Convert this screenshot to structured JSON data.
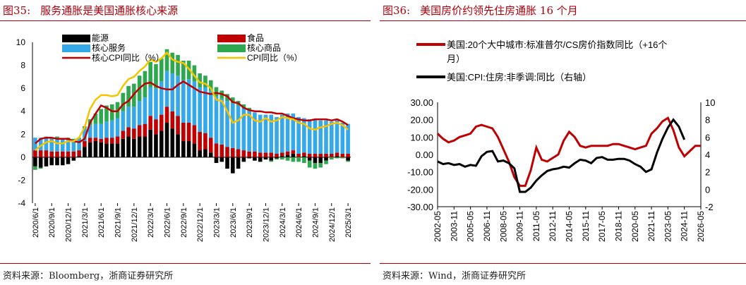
{
  "left_panel": {
    "figure_label": "图35:",
    "title": "服务通胀是美国通胀核心来源",
    "source": "资料来源：Bloomberg，浙商证券研究所"
  },
  "right_panel": {
    "figure_label": "图36:",
    "title": "美国房价约领先住房通胀 16 个月",
    "source": "资料来源：Wind，浙商证券研究所"
  },
  "chart_data": [
    {
      "type": "bar",
      "stacked": true,
      "title": "",
      "legend": [
        "能源",
        "食品",
        "核心服务",
        "核心商品",
        "核心CPI同比（%）",
        "CPI同比（%）"
      ],
      "colors": {
        "energy": "#000000",
        "food": "#c00000",
        "core_services": "#34a8e8",
        "core_goods": "#2ea84f",
        "core_cpi": "#c00000",
        "cpi": "#f5c400"
      },
      "ylim": [
        -4,
        10
      ],
      "y_ticks": [
        "10",
        "8",
        "6",
        "4",
        "2",
        "0",
        "-2",
        "-4"
      ],
      "x_tick_labels": [
        "2020/6/1",
        "2020/9/1",
        "2020/12/1",
        "2021/3/1",
        "2021/6/1",
        "2021/9/1",
        "2021/12/1",
        "2022/3/1",
        "2022/6/1",
        "2022/9/1",
        "2022/12/1",
        "2023/3/1",
        "2023/6/1",
        "2023/9/1",
        "2023/12/1",
        "2024/3/1",
        "2024/6/1",
        "2024/9/1",
        "2024/12/1",
        "2025/3/1"
      ],
      "categories": [
        "2020/6",
        "2020/7",
        "2020/8",
        "2020/9",
        "2020/10",
        "2020/11",
        "2020/12",
        "2021/1",
        "2021/2",
        "2021/3",
        "2021/4",
        "2021/5",
        "2021/6",
        "2021/7",
        "2021/8",
        "2021/9",
        "2021/10",
        "2021/11",
        "2021/12",
        "2022/1",
        "2022/2",
        "2022/3",
        "2022/4",
        "2022/5",
        "2022/6",
        "2022/7",
        "2022/8",
        "2022/9",
        "2022/10",
        "2022/11",
        "2022/12",
        "2023/1",
        "2023/2",
        "2023/3",
        "2023/4",
        "2023/5",
        "2023/6",
        "2023/7",
        "2023/8",
        "2023/9",
        "2023/10",
        "2023/11",
        "2023/12",
        "2024/1",
        "2024/2",
        "2024/3",
        "2024/4",
        "2024/5",
        "2024/6",
        "2024/7",
        "2024/8",
        "2024/9",
        "2024/10",
        "2024/11",
        "2024/12",
        "2025/1",
        "2025/2",
        "2025/3"
      ],
      "series": [
        {
          "name": "能源",
          "key": "energy",
          "values": [
            -0.8,
            -0.9,
            -0.8,
            -0.7,
            -0.7,
            -0.7,
            -0.6,
            -0.3,
            0.1,
            0.9,
            1.3,
            1.4,
            1.3,
            1.2,
            1.2,
            1.2,
            1.6,
            1.8,
            1.6,
            1.8,
            1.8,
            2.4,
            2.0,
            2.3,
            3.0,
            2.5,
            2.0,
            1.4,
            1.4,
            1.2,
            0.6,
            0.7,
            0.4,
            -0.5,
            -0.4,
            -1.0,
            -1.4,
            -1.0,
            -0.4,
            -0.1,
            -0.3,
            -0.4,
            -0.2,
            -0.3,
            -0.1,
            0.1,
            0.2,
            0.3,
            0.0,
            0.1,
            -0.3,
            -0.5,
            -0.5,
            -0.3,
            -0.0,
            0.1,
            0.0,
            -0.3
          ]
        },
        {
          "name": "食品",
          "key": "food",
          "values": [
            0.6,
            0.6,
            0.6,
            0.5,
            0.5,
            0.5,
            0.5,
            0.5,
            0.5,
            0.5,
            0.4,
            0.3,
            0.3,
            0.5,
            0.5,
            0.6,
            0.7,
            0.8,
            0.9,
            1.0,
            1.1,
            1.2,
            1.3,
            1.4,
            1.4,
            1.5,
            1.6,
            1.6,
            1.6,
            1.6,
            1.6,
            1.4,
            1.3,
            1.2,
            1.1,
            0.9,
            0.8,
            0.7,
            0.6,
            0.5,
            0.5,
            0.4,
            0.4,
            0.4,
            0.3,
            0.3,
            0.3,
            0.3,
            0.3,
            0.3,
            0.3,
            0.3,
            0.3,
            0.3,
            0.3,
            0.3,
            0.3,
            0.3
          ]
        },
        {
          "name": "核心服务",
          "key": "core_services",
          "values": [
            1.1,
            1.1,
            1.2,
            1.1,
            1.2,
            1.1,
            1.1,
            1.0,
            1.0,
            1.1,
            1.1,
            1.2,
            1.3,
            1.4,
            1.5,
            1.6,
            1.7,
            1.8,
            1.9,
            2.1,
            2.3,
            2.5,
            2.7,
            2.9,
            3.1,
            3.3,
            3.5,
            3.7,
            3.8,
            3.8,
            3.9,
            4.0,
            4.1,
            4.1,
            4.0,
            4.0,
            3.9,
            3.8,
            3.7,
            3.6,
            3.4,
            3.3,
            3.3,
            3.3,
            3.2,
            3.3,
            3.3,
            3.2,
            3.2,
            3.0,
            3.0,
            3.0,
            2.9,
            2.9,
            2.8,
            2.8,
            2.7,
            2.6
          ]
        },
        {
          "name": "核心商品",
          "key": "core_goods",
          "values": [
            -0.3,
            -0.1,
            0.0,
            0.1,
            0.1,
            0.0,
            0.1,
            0.1,
            0.1,
            0.2,
            0.5,
            0.9,
            1.3,
            1.4,
            1.4,
            1.4,
            1.6,
            1.8,
            2.0,
            2.2,
            2.3,
            2.2,
            2.1,
            2.0,
            1.9,
            1.8,
            1.8,
            1.7,
            1.6,
            1.4,
            1.2,
            1.0,
            0.9,
            0.8,
            0.7,
            0.6,
            0.5,
            0.4,
            0.3,
            0.2,
            0.0,
            0.0,
            0.0,
            -0.1,
            -0.1,
            -0.2,
            -0.3,
            -0.4,
            -0.4,
            -0.5,
            -0.6,
            -0.5,
            -0.4,
            -0.3,
            -0.2,
            -0.1,
            -0.1,
            -0.1
          ]
        }
      ],
      "lines": [
        {
          "name": "核心CPI同比（%）",
          "key": "core_cpi",
          "values": [
            1.2,
            1.6,
            1.7,
            1.7,
            1.6,
            1.6,
            1.6,
            1.4,
            1.3,
            1.6,
            3.0,
            3.8,
            4.5,
            4.3,
            4.0,
            4.0,
            4.6,
            4.9,
            5.5,
            6.0,
            6.4,
            6.5,
            6.2,
            6.0,
            5.9,
            5.9,
            6.3,
            6.6,
            6.3,
            6.0,
            5.7,
            5.6,
            5.5,
            5.6,
            5.5,
            5.3,
            4.8,
            4.7,
            4.3,
            4.1,
            4.0,
            4.0,
            3.9,
            3.9,
            3.8,
            3.8,
            3.6,
            3.4,
            3.3,
            3.2,
            3.2,
            3.3,
            3.3,
            3.3,
            3.2,
            3.3,
            3.1,
            2.8
          ]
        },
        {
          "name": "CPI同比（%）",
          "key": "cpi",
          "values": [
            0.6,
            1.0,
            1.3,
            1.4,
            1.2,
            1.2,
            1.4,
            1.4,
            1.7,
            2.6,
            4.2,
            5.0,
            5.4,
            5.4,
            5.3,
            5.4,
            6.2,
            6.8,
            7.0,
            7.5,
            7.9,
            8.5,
            8.3,
            8.6,
            9.1,
            8.5,
            8.3,
            8.2,
            7.7,
            7.1,
            6.5,
            6.4,
            6.0,
            5.0,
            4.9,
            4.0,
            3.0,
            3.2,
            3.7,
            3.7,
            3.2,
            3.1,
            3.4,
            3.1,
            3.2,
            3.5,
            3.4,
            3.3,
            3.0,
            2.9,
            2.5,
            2.4,
            2.6,
            2.7,
            2.9,
            3.0,
            2.8,
            2.4
          ]
        }
      ]
    },
    {
      "type": "line",
      "title": "",
      "legend": [
        "美国:20个大中城市:标准普尔/CS房价指数同比（+16个月）",
        "美国:CPI:住房:非季调:同比（右轴）"
      ],
      "legend_line2_suffix": "月）",
      "colors": {
        "hpi": "#c00000",
        "shelter": "#000000"
      },
      "ylim_left": [
        -30,
        30
      ],
      "ylim_right": [
        -2,
        10
      ],
      "y_ticks_left": [
        "30.00",
        "20.00",
        "10.00",
        "0.00",
        "-10.00",
        "-20.00",
        "-30.00"
      ],
      "y_ticks_right": [
        "10",
        "8",
        "6",
        "4",
        "2",
        "0",
        "-2"
      ],
      "x_tick_labels": [
        "2002-05",
        "2003-11",
        "2005-05",
        "2006-11",
        "2008-05",
        "2009-11",
        "2011-05",
        "2012-11",
        "2014-05",
        "2015-11",
        "2017-05",
        "2018-11",
        "2020-05",
        "2021-11",
        "2023-05",
        "2024-11",
        "2026-05"
      ],
      "series": [
        {
          "name": "美国:20个大中城市:标准普尔/CS房价指数同比（+16个月）",
          "key": "hpi",
          "axis": "left",
          "x": [
            "2002-05",
            "2002-11",
            "2003-05",
            "2003-11",
            "2004-05",
            "2004-11",
            "2005-05",
            "2005-11",
            "2006-05",
            "2006-11",
            "2007-05",
            "2007-11",
            "2008-05",
            "2008-11",
            "2009-05",
            "2009-11",
            "2010-05",
            "2010-11",
            "2011-05",
            "2011-11",
            "2012-05",
            "2012-11",
            "2013-05",
            "2013-11",
            "2014-05",
            "2014-11",
            "2015-05",
            "2015-11",
            "2016-05",
            "2016-11",
            "2017-05",
            "2017-11",
            "2018-05",
            "2018-11",
            "2019-05",
            "2019-11",
            "2020-05",
            "2020-11",
            "2021-05",
            "2021-11",
            "2022-05",
            "2022-11",
            "2023-05",
            "2023-11",
            "2024-05",
            "2024-11",
            "2025-05",
            "2025-11",
            "2026-05"
          ],
          "y": [
            12,
            9,
            7,
            8,
            10,
            11,
            12,
            16,
            17,
            16,
            15,
            10,
            3,
            -4,
            -13,
            -18,
            -18,
            -9,
            4,
            -3,
            -4,
            -2,
            0,
            8,
            13,
            10,
            5,
            4,
            5,
            5,
            5,
            5,
            6,
            6,
            5,
            4,
            3,
            4,
            5,
            12,
            15,
            19,
            21,
            14,
            4,
            -1,
            2,
            5,
            5
          ]
        },
        {
          "name": "美国:CPI:住房:非季调:同比（右轴）",
          "key": "shelter",
          "axis": "right",
          "x": [
            "2002-05",
            "2002-11",
            "2003-05",
            "2003-11",
            "2004-05",
            "2004-11",
            "2005-05",
            "2005-11",
            "2006-05",
            "2006-11",
            "2007-05",
            "2007-11",
            "2008-05",
            "2008-11",
            "2009-05",
            "2009-11",
            "2010-05",
            "2010-11",
            "2011-05",
            "2011-11",
            "2012-05",
            "2012-11",
            "2013-05",
            "2013-11",
            "2014-05",
            "2014-11",
            "2015-05",
            "2015-11",
            "2016-05",
            "2016-11",
            "2017-05",
            "2017-11",
            "2018-05",
            "2018-11",
            "2019-05",
            "2019-11",
            "2020-05",
            "2020-11",
            "2021-05",
            "2021-11",
            "2022-05",
            "2022-11",
            "2023-05",
            "2023-11",
            "2024-05",
            "2024-11"
          ],
          "y": [
            3.2,
            2.9,
            3.0,
            2.8,
            2.9,
            2.6,
            2.8,
            2.7,
            3.8,
            4.3,
            4.4,
            3.2,
            3.3,
            3.0,
            2.4,
            -0.3,
            -0.3,
            0.2,
            1.0,
            1.6,
            2.1,
            2.3,
            2.4,
            2.6,
            2.5,
            3.0,
            3.4,
            3.3,
            3.0,
            3.6,
            3.7,
            3.4,
            3.4,
            3.5,
            3.5,
            3.3,
            2.9,
            2.6,
            2.0,
            2.3,
            4.2,
            5.8,
            7.1,
            8.0,
            7.2,
            5.7
          ]
        }
      ]
    }
  ]
}
